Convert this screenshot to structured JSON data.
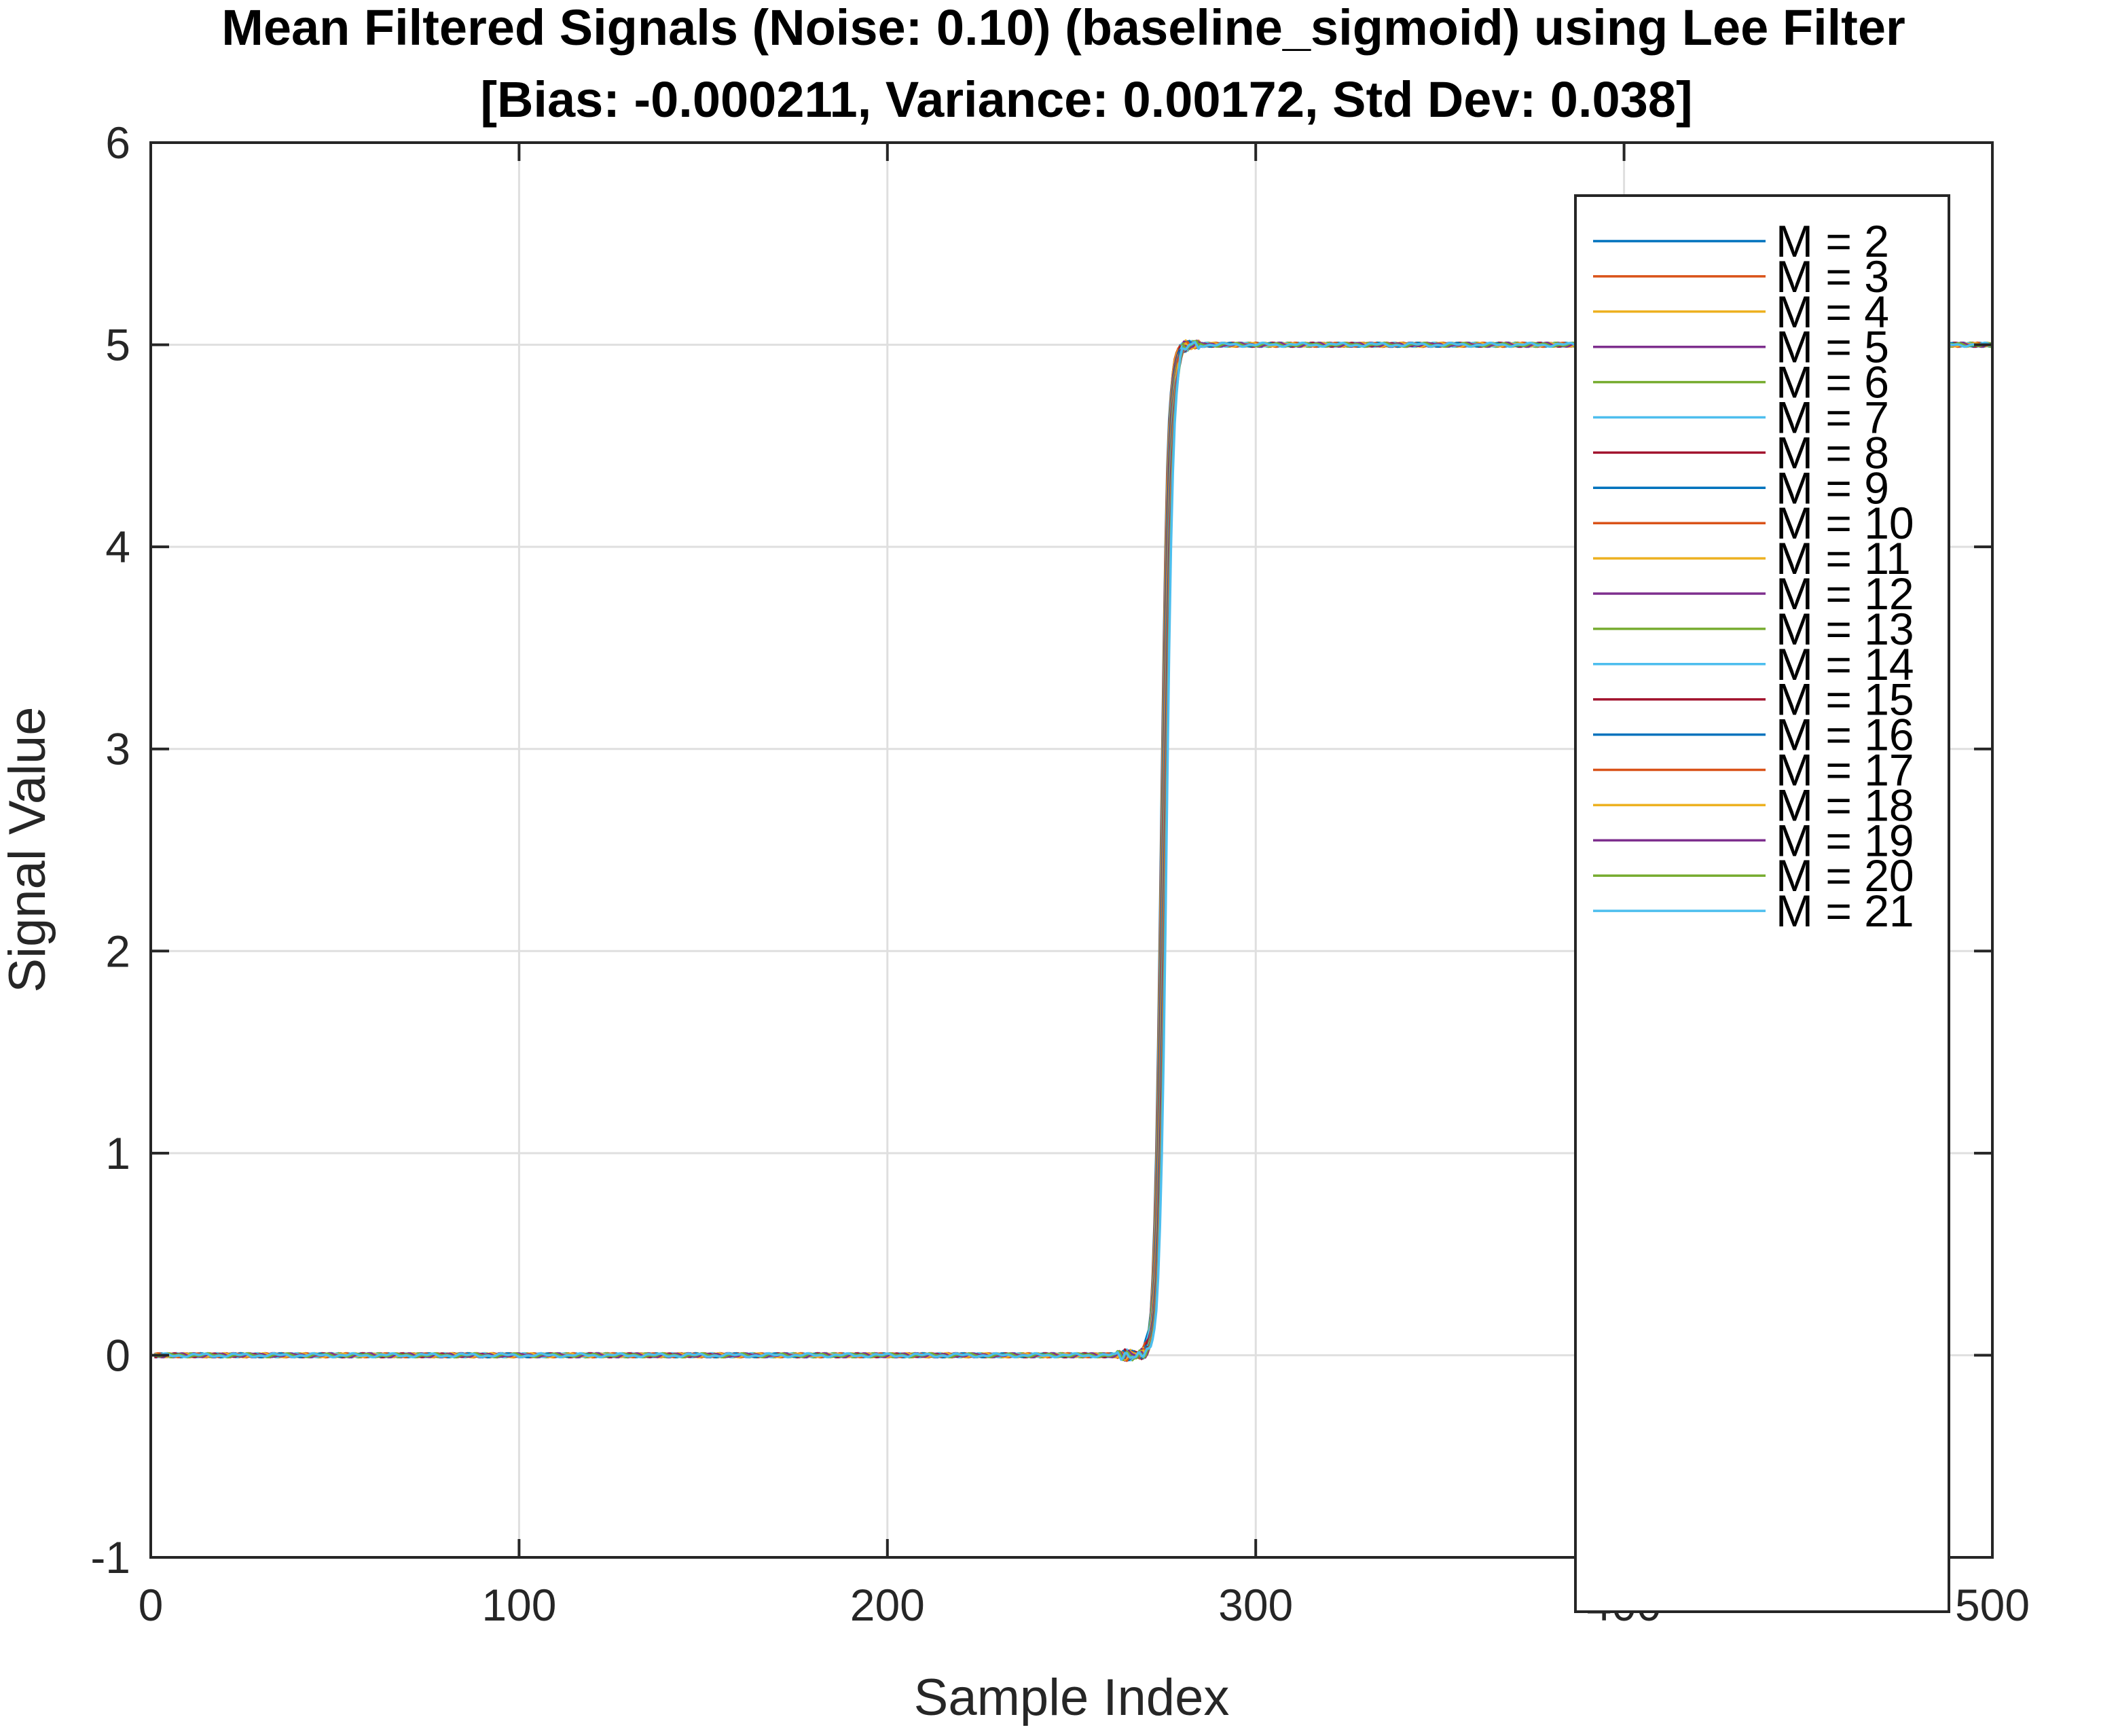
{
  "colors": {
    "axis": "#262626",
    "grid": "#dfdfdf",
    "background": "#ffffff"
  },
  "chart_data": {
    "type": "line",
    "title": "Mean Filtered Signals (Noise: 0.10) (baseline_sigmoid) using Lee Filter",
    "subtitle": "[Bias: -0.000211, Variance: 0.00172, Std Dev: 0.038]",
    "xlabel": "Sample Index",
    "ylabel": "Signal Value",
    "xlim": [
      0,
      500
    ],
    "ylim": [
      -1,
      6
    ],
    "xticks": [
      0,
      100,
      200,
      300,
      400,
      500
    ],
    "yticks": [
      -1,
      0,
      1,
      2,
      3,
      4,
      5,
      6
    ],
    "grid": true,
    "legend_position": "top-right (inside)",
    "signal_shape": {
      "low_level": 0,
      "high_level": 5,
      "transition_start": 268,
      "transition_midpoint": 275,
      "transition_end": 283,
      "x_range": [
        1,
        500
      ]
    },
    "series": [
      {
        "name": "M = 2",
        "color": "#0072BD"
      },
      {
        "name": "M = 3",
        "color": "#D95319"
      },
      {
        "name": "M = 4",
        "color": "#EDB120"
      },
      {
        "name": "M = 5",
        "color": "#7E2F8E"
      },
      {
        "name": "M = 6",
        "color": "#77AC30"
      },
      {
        "name": "M = 7",
        "color": "#4DBEEE"
      },
      {
        "name": "M = 8",
        "color": "#A2142F"
      },
      {
        "name": "M = 9",
        "color": "#0072BD"
      },
      {
        "name": "M = 10",
        "color": "#D95319"
      },
      {
        "name": "M = 11",
        "color": "#EDB120"
      },
      {
        "name": "M = 12",
        "color": "#7E2F8E"
      },
      {
        "name": "M = 13",
        "color": "#77AC30"
      },
      {
        "name": "M = 14",
        "color": "#4DBEEE"
      },
      {
        "name": "M = 15",
        "color": "#A2142F"
      },
      {
        "name": "M = 16",
        "color": "#0072BD"
      },
      {
        "name": "M = 17",
        "color": "#D95319"
      },
      {
        "name": "M = 18",
        "color": "#EDB120"
      },
      {
        "name": "M = 19",
        "color": "#7E2F8E"
      },
      {
        "name": "M = 20",
        "color": "#77AC30"
      },
      {
        "name": "M = 21",
        "color": "#4DBEEE"
      }
    ]
  }
}
